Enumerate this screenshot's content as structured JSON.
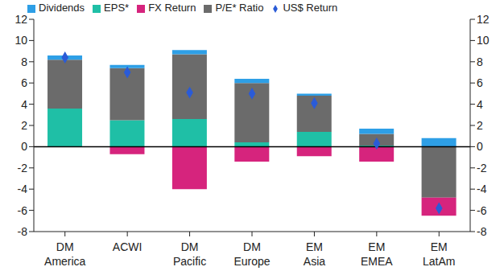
{
  "chart_data": {
    "type": "bar",
    "stacked": true,
    "legend": "top",
    "grid": false,
    "categories": [
      "DM America",
      "ACWI",
      "DM Pacific",
      "DM Europe",
      "EM Asia",
      "EM EMEA",
      "EM LatAm"
    ],
    "series": [
      {
        "name": "EPS*",
        "color": "#1fbfa6",
        "type": "bar",
        "values": [
          3.6,
          2.5,
          2.6,
          0.4,
          1.4,
          0.1,
          0
        ]
      },
      {
        "name": "P/E* Ratio",
        "color": "#6b6b6b",
        "type": "bar",
        "values": [
          4.6,
          4.9,
          6.1,
          5.6,
          3.4,
          1.1,
          -4.8
        ]
      },
      {
        "name": "Dividends",
        "color": "#2e9fe6",
        "type": "bar",
        "values": [
          0.4,
          0.3,
          0.4,
          0.4,
          0.2,
          0.5,
          0.8
        ]
      },
      {
        "name": "FX Return",
        "color": "#d6247d",
        "type": "bar",
        "values": [
          0,
          -0.7,
          -4.0,
          -1.4,
          -0.9,
          -1.4,
          -1.7
        ]
      },
      {
        "name": "US$ Return",
        "color": "#2a5bd7",
        "type": "scatter",
        "marker": "diamond",
        "values": [
          8.4,
          7.0,
          5.1,
          5.0,
          4.1,
          0.3,
          -5.8
        ]
      }
    ],
    "ylim": [
      -8,
      12
    ],
    "yticks": [
      -8,
      -6,
      -4,
      -2,
      0,
      2,
      4,
      6,
      8,
      10,
      12
    ],
    "y2lim": [
      -8,
      12
    ],
    "y2ticks": [
      -8,
      -6,
      -4,
      -2,
      0,
      2,
      4,
      6,
      8,
      10,
      12
    ]
  }
}
